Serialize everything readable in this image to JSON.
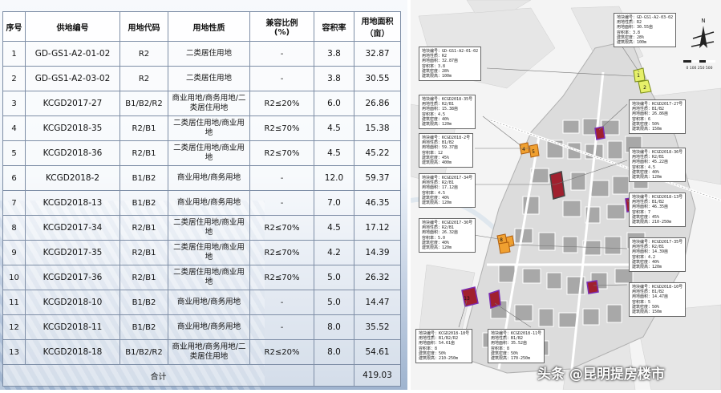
{
  "table": {
    "headers": [
      "序号",
      "供地编号",
      "用地代码",
      "用地性质",
      "兼容比例\n(%)",
      "容积率",
      "用地面积\n（亩）"
    ],
    "rows": [
      [
        "1",
        "GD-GS1-A2-01-02",
        "R2",
        "二类居住用地",
        "-",
        "3.8",
        "32.87"
      ],
      [
        "2",
        "GD-GS1-A2-03-02",
        "R2",
        "二类居住用地",
        "-",
        "3.8",
        "30.55"
      ],
      [
        "3",
        "KCGD2017-27",
        "B1/B2/R2",
        "商业用地/商务用地/二类居住用地",
        "R2≤20%",
        "6.0",
        "26.86"
      ],
      [
        "4",
        "KCGD2018-35",
        "R2/B1",
        "二类居住用地/商业用地",
        "R2≤70%",
        "4.5",
        "15.38"
      ],
      [
        "5",
        "KCGD2018-36",
        "R2/B1",
        "二类居住用地/商业用地",
        "R2≤70%",
        "4.5",
        "45.22"
      ],
      [
        "6",
        "KCGD2018-2",
        "B1/B2",
        "商业用地/商务用地",
        "-",
        "12.0",
        "59.37"
      ],
      [
        "7",
        "KCGD2018-13",
        "B1/B2",
        "商业用地/商务用地",
        "-",
        "7.0",
        "46.35"
      ],
      [
        "8",
        "KCGD2017-34",
        "R2/B1",
        "二类居住用地/商业用地",
        "R2≤70%",
        "4.5",
        "17.12"
      ],
      [
        "9",
        "KCGD2017-35",
        "R2/B1",
        "二类居住用地/商业用地",
        "R2≤70%",
        "4.2",
        "14.39"
      ],
      [
        "10",
        "KCGD2017-36",
        "R2/B1",
        "二类居住用地/商业用地",
        "R2≤70%",
        "5.0",
        "26.32"
      ],
      [
        "11",
        "KCGD2018-10",
        "B1/B2",
        "商业用地/商务用地",
        "-",
        "5.0",
        "14.47"
      ],
      [
        "12",
        "KCGD2018-11",
        "B1/B2",
        "商业用地/商务用地",
        "-",
        "8.0",
        "35.52"
      ],
      [
        "13",
        "KCGD2018-18",
        "B1/B2/R2",
        "商业用地/商务用地/二类居住用地",
        "R2≤20%",
        "8.0",
        "54.61"
      ]
    ],
    "total_label": "合计",
    "total_value": "419.03"
  },
  "map": {
    "north_label": "N",
    "scale_label": "0 100 250   500",
    "callouts": [
      {
        "id": "c1",
        "lines": [
          "地块编号：GD-GS1-A2-03-02",
          "用地性质：R2",
          "用地面积：30.55亩",
          "容积率：3.8",
          "建筑密度：28%",
          "建筑限高：100m"
        ]
      },
      {
        "id": "c2",
        "lines": [
          "地块编号：GD-GS1-A2-01-02",
          "用地性质：R2",
          "用地面积：32.87亩",
          "容积率：3.8",
          "建筑密度：28%",
          "建筑限高：100m"
        ]
      },
      {
        "id": "c3",
        "lines": [
          "地块编号：KCGD2017-27号",
          "用地性质：B1/B2",
          "用地面积：26.86亩",
          "容积率：6",
          "建筑密度：50%",
          "建筑限高：150m"
        ]
      },
      {
        "id": "c4",
        "lines": [
          "地块编号：KCGD2018-35号",
          "用地性质：R2/B1",
          "用地面积：15.38亩",
          "容积率：4.5",
          "建筑密度：40%",
          "建筑限高：120m"
        ]
      },
      {
        "id": "c5",
        "lines": [
          "地块编号：KCGD2018-2号",
          "用地性质：B1/B2",
          "用地面积：59.37亩",
          "容积率：12",
          "建筑密度：45%",
          "建筑限高：400m"
        ]
      },
      {
        "id": "c6",
        "lines": [
          "地块编号：KCGD2018-36号",
          "用地性质：R2/B1",
          "用地面积：45.22亩",
          "容积率：4.5",
          "建筑密度：40%",
          "建筑限高：120m"
        ]
      },
      {
        "id": "c7",
        "lines": [
          "地块编号：KCGD2017-34号",
          "用地性质：R2/B1",
          "用地面积：17.12亩",
          "容积率：4.5",
          "建筑密度：40%",
          "建筑限高：120m"
        ]
      },
      {
        "id": "c8",
        "lines": [
          "地块编号：KCGD2018-13号",
          "用地性质：B1/B2",
          "用地面积：46.35亩",
          "容积率：7",
          "建筑密度：45%",
          "建筑限高：210-250m"
        ]
      },
      {
        "id": "c9",
        "lines": [
          "地块编号：KCGD2017-36号",
          "用地性质：R2/B1",
          "用地面积：26.32亩",
          "容积率：5.0",
          "建筑密度：40%",
          "建筑限高：120m"
        ]
      },
      {
        "id": "c10",
        "lines": [
          "地块编号：KCGD2017-35号",
          "用地性质：R2/B1",
          "用地面积：14.39亩",
          "容积率：4.2",
          "建筑密度：40%",
          "建筑限高：120m"
        ]
      },
      {
        "id": "c11",
        "lines": [
          "地块编号：KCGD2018-10号",
          "用地性质：B1/B2",
          "用地面积：14.47亩",
          "容积率：5",
          "建筑密度：50%",
          "建筑限高：150m"
        ]
      },
      {
        "id": "c12",
        "lines": [
          "地块编号：KCGD2018-18号",
          "用地性质：B1/B2/R2",
          "用地面积：54.61亩",
          "容积率：8",
          "建筑密度：50%",
          "建筑限高：210-250m"
        ]
      },
      {
        "id": "c13",
        "lines": [
          "地块编号：KCGD2018-11号",
          "用地性质：B1/B2",
          "用地面积：35.52亩",
          "容积率：8",
          "建筑密度：50%",
          "建筑限高：170-250m"
        ]
      }
    ],
    "parcel_labels": [
      "1",
      "2",
      "3",
      "4",
      "5",
      "6",
      "7",
      "8",
      "9",
      "10",
      "11",
      "12",
      "13"
    ]
  },
  "watermark": "头条 @昆明提房楼市"
}
